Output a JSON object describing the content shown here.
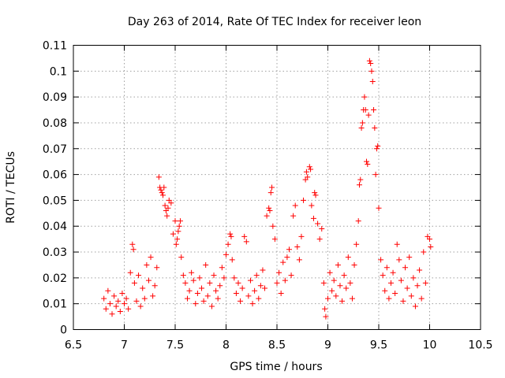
{
  "chart_data": {
    "type": "scatter",
    "title": "Day 263 of 2014, Rate Of TEC Index for receiver leon",
    "xlabel": "GPS time / hours",
    "ylabel": "ROTI / TECUs",
    "xlim": [
      6.5,
      10.5
    ],
    "ylim": [
      0,
      0.11
    ],
    "xticks": [
      6.5,
      7,
      7.5,
      8,
      8.5,
      9,
      9.5,
      10,
      10.5
    ],
    "xtick_labels": [
      "6.5",
      "7",
      "7.5",
      "8",
      "8.5",
      "9",
      "9.5",
      "10",
      "10.5"
    ],
    "yticks": [
      0,
      0.01,
      0.02,
      0.03,
      0.04,
      0.05,
      0.06,
      0.07,
      0.08,
      0.09,
      0.1,
      0.11
    ],
    "ytick_labels": [
      "0",
      "0.01",
      "0.02",
      "0.03",
      "0.04",
      "0.05",
      "0.06",
      "0.07",
      "0.08",
      "0.09",
      "0.1",
      "0.11"
    ],
    "grid": true,
    "marker": "+",
    "color": "#ff0000",
    "series": [
      {
        "name": "ROTI",
        "points": [
          [
            6.8,
            0.012
          ],
          [
            6.82,
            0.008
          ],
          [
            6.84,
            0.015
          ],
          [
            6.86,
            0.01
          ],
          [
            6.88,
            0.006
          ],
          [
            6.9,
            0.013
          ],
          [
            6.92,
            0.009
          ],
          [
            6.94,
            0.011
          ],
          [
            6.96,
            0.007
          ],
          [
            6.98,
            0.014
          ],
          [
            7.0,
            0.01
          ],
          [
            7.02,
            0.012
          ],
          [
            7.04,
            0.008
          ],
          [
            7.06,
            0.022
          ],
          [
            7.08,
            0.033
          ],
          [
            7.09,
            0.031
          ],
          [
            7.1,
            0.018
          ],
          [
            7.12,
            0.011
          ],
          [
            7.14,
            0.021
          ],
          [
            7.16,
            0.009
          ],
          [
            7.18,
            0.016
          ],
          [
            7.2,
            0.012
          ],
          [
            7.22,
            0.025
          ],
          [
            7.24,
            0.019
          ],
          [
            7.26,
            0.028
          ],
          [
            7.28,
            0.013
          ],
          [
            7.3,
            0.017
          ],
          [
            7.32,
            0.024
          ],
          [
            7.34,
            0.059
          ],
          [
            7.35,
            0.055
          ],
          [
            7.36,
            0.054
          ],
          [
            7.37,
            0.053
          ],
          [
            7.38,
            0.052
          ],
          [
            7.39,
            0.055
          ],
          [
            7.4,
            0.048
          ],
          [
            7.41,
            0.046
          ],
          [
            7.42,
            0.044
          ],
          [
            7.43,
            0.047
          ],
          [
            7.44,
            0.05
          ],
          [
            7.46,
            0.049
          ],
          [
            7.48,
            0.037
          ],
          [
            7.5,
            0.042
          ],
          [
            7.51,
            0.033
          ],
          [
            7.52,
            0.035
          ],
          [
            7.53,
            0.038
          ],
          [
            7.54,
            0.04
          ],
          [
            7.55,
            0.042
          ],
          [
            7.56,
            0.028
          ],
          [
            7.58,
            0.021
          ],
          [
            7.6,
            0.018
          ],
          [
            7.62,
            0.012
          ],
          [
            7.64,
            0.015
          ],
          [
            7.66,
            0.022
          ],
          [
            7.68,
            0.019
          ],
          [
            7.7,
            0.01
          ],
          [
            7.72,
            0.014
          ],
          [
            7.74,
            0.02
          ],
          [
            7.76,
            0.016
          ],
          [
            7.78,
            0.011
          ],
          [
            7.8,
            0.025
          ],
          [
            7.82,
            0.013
          ],
          [
            7.84,
            0.018
          ],
          [
            7.86,
            0.009
          ],
          [
            7.88,
            0.021
          ],
          [
            7.9,
            0.015
          ],
          [
            7.92,
            0.012
          ],
          [
            7.94,
            0.017
          ],
          [
            7.96,
            0.024
          ],
          [
            7.98,
            0.02
          ],
          [
            8.0,
            0.029
          ],
          [
            8.02,
            0.033
          ],
          [
            8.04,
            0.037
          ],
          [
            8.05,
            0.036
          ],
          [
            8.06,
            0.027
          ],
          [
            8.08,
            0.02
          ],
          [
            8.1,
            0.014
          ],
          [
            8.12,
            0.018
          ],
          [
            8.14,
            0.011
          ],
          [
            8.16,
            0.016
          ],
          [
            8.18,
            0.036
          ],
          [
            8.2,
            0.034
          ],
          [
            8.22,
            0.013
          ],
          [
            8.24,
            0.019
          ],
          [
            8.26,
            0.01
          ],
          [
            8.28,
            0.015
          ],
          [
            8.3,
            0.021
          ],
          [
            8.32,
            0.012
          ],
          [
            8.34,
            0.017
          ],
          [
            8.36,
            0.023
          ],
          [
            8.38,
            0.016
          ],
          [
            8.4,
            0.044
          ],
          [
            8.42,
            0.047
          ],
          [
            8.43,
            0.046
          ],
          [
            8.44,
            0.053
          ],
          [
            8.45,
            0.055
          ],
          [
            8.46,
            0.04
          ],
          [
            8.48,
            0.035
          ],
          [
            8.5,
            0.018
          ],
          [
            8.52,
            0.022
          ],
          [
            8.54,
            0.014
          ],
          [
            8.56,
            0.026
          ],
          [
            8.58,
            0.019
          ],
          [
            8.6,
            0.028
          ],
          [
            8.62,
            0.031
          ],
          [
            8.64,
            0.021
          ],
          [
            8.66,
            0.044
          ],
          [
            8.68,
            0.048
          ],
          [
            8.7,
            0.032
          ],
          [
            8.72,
            0.027
          ],
          [
            8.74,
            0.036
          ],
          [
            8.76,
            0.05
          ],
          [
            8.78,
            0.058
          ],
          [
            8.79,
            0.061
          ],
          [
            8.8,
            0.059
          ],
          [
            8.82,
            0.063
          ],
          [
            8.83,
            0.062
          ],
          [
            8.84,
            0.048
          ],
          [
            8.86,
            0.043
          ],
          [
            8.87,
            0.053
          ],
          [
            8.88,
            0.052
          ],
          [
            8.9,
            0.041
          ],
          [
            8.92,
            0.035
          ],
          [
            8.94,
            0.039
          ],
          [
            8.96,
            0.018
          ],
          [
            8.97,
            0.008
          ],
          [
            8.98,
            0.005
          ],
          [
            9.0,
            0.012
          ],
          [
            9.02,
            0.022
          ],
          [
            9.04,
            0.015
          ],
          [
            9.06,
            0.019
          ],
          [
            9.08,
            0.013
          ],
          [
            9.1,
            0.025
          ],
          [
            9.12,
            0.017
          ],
          [
            9.14,
            0.011
          ],
          [
            9.16,
            0.021
          ],
          [
            9.18,
            0.016
          ],
          [
            9.2,
            0.028
          ],
          [
            9.22,
            0.018
          ],
          [
            9.24,
            0.012
          ],
          [
            9.26,
            0.025
          ],
          [
            9.28,
            0.033
          ],
          [
            9.3,
            0.042
          ],
          [
            9.31,
            0.056
          ],
          [
            9.32,
            0.058
          ],
          [
            9.33,
            0.078
          ],
          [
            9.34,
            0.08
          ],
          [
            9.35,
            0.085
          ],
          [
            9.36,
            0.09
          ],
          [
            9.37,
            0.085
          ],
          [
            9.38,
            0.065
          ],
          [
            9.39,
            0.064
          ],
          [
            9.4,
            0.083
          ],
          [
            9.41,
            0.104
          ],
          [
            9.42,
            0.103
          ],
          [
            9.43,
            0.1
          ],
          [
            9.44,
            0.096
          ],
          [
            9.45,
            0.085
          ],
          [
            9.46,
            0.078
          ],
          [
            9.47,
            0.06
          ],
          [
            9.48,
            0.07
          ],
          [
            9.49,
            0.071
          ],
          [
            9.5,
            0.047
          ],
          [
            9.52,
            0.027
          ],
          [
            9.54,
            0.021
          ],
          [
            9.56,
            0.015
          ],
          [
            9.58,
            0.024
          ],
          [
            9.6,
            0.012
          ],
          [
            9.62,
            0.018
          ],
          [
            9.64,
            0.022
          ],
          [
            9.66,
            0.014
          ],
          [
            9.68,
            0.033
          ],
          [
            9.7,
            0.027
          ],
          [
            9.72,
            0.019
          ],
          [
            9.74,
            0.011
          ],
          [
            9.76,
            0.024
          ],
          [
            9.78,
            0.016
          ],
          [
            9.8,
            0.028
          ],
          [
            9.82,
            0.013
          ],
          [
            9.84,
            0.02
          ],
          [
            9.86,
            0.009
          ],
          [
            9.88,
            0.017
          ],
          [
            9.9,
            0.023
          ],
          [
            9.92,
            0.012
          ],
          [
            9.94,
            0.03
          ],
          [
            9.96,
            0.018
          ],
          [
            9.98,
            0.036
          ],
          [
            10.0,
            0.035
          ],
          [
            10.01,
            0.032
          ]
        ]
      }
    ]
  }
}
